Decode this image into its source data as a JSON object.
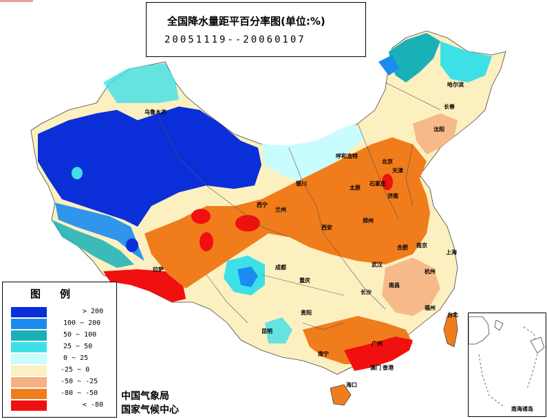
{
  "title": {
    "line1": "全国降水量距平百分率图(单位:%)",
    "line2": "20051119--20060107"
  },
  "legend": {
    "title": "图例",
    "items": [
      {
        "label": "> 200",
        "color": "#0a2fd9"
      },
      {
        "label": "100 ~ 200",
        "color": "#1a8cf0"
      },
      {
        "label": "50 ~ 100",
        "color": "#1ab0b8"
      },
      {
        "label": "25 ~ 50",
        "color": "#3ee0e8"
      },
      {
        "label": "0 ~ 25",
        "color": "#c8fcff"
      },
      {
        "label": "-25 ~ 0",
        "color": "#fcf0c0"
      },
      {
        "label": "-50 ~ -25",
        "color": "#f4b080"
      },
      {
        "label": "-80 ~ -50",
        "color": "#f07c1c"
      },
      {
        "label": "< -80",
        "color": "#f01010"
      }
    ]
  },
  "credits": {
    "line1": "中国气象局",
    "line2": "国家气候中心"
  },
  "inset": {
    "label": "南海诸岛"
  },
  "cities": [
    {
      "name": "乌鲁木齐"
    },
    {
      "name": "哈尔滨"
    },
    {
      "name": "长春"
    },
    {
      "name": "沈阳"
    },
    {
      "name": "呼和浩特"
    },
    {
      "name": "北京"
    },
    {
      "name": "天津"
    },
    {
      "name": "石家庄"
    },
    {
      "name": "太原"
    },
    {
      "name": "济南"
    },
    {
      "name": "银川"
    },
    {
      "name": "西宁"
    },
    {
      "name": "兰州"
    },
    {
      "name": "西安"
    },
    {
      "name": "郑州"
    },
    {
      "name": "合肥"
    },
    {
      "name": "南京"
    },
    {
      "name": "上海"
    },
    {
      "name": "武汉"
    },
    {
      "name": "成都"
    },
    {
      "name": "拉萨"
    },
    {
      "name": "重庆"
    },
    {
      "name": "长沙"
    },
    {
      "name": "南昌"
    },
    {
      "name": "杭州"
    },
    {
      "name": "福州"
    },
    {
      "name": "台北"
    },
    {
      "name": "贵阳"
    },
    {
      "name": "昆明"
    },
    {
      "name": "南宁"
    },
    {
      "name": "广州"
    },
    {
      "name": "澳门"
    },
    {
      "name": "香港"
    },
    {
      "name": "海口"
    }
  ]
}
